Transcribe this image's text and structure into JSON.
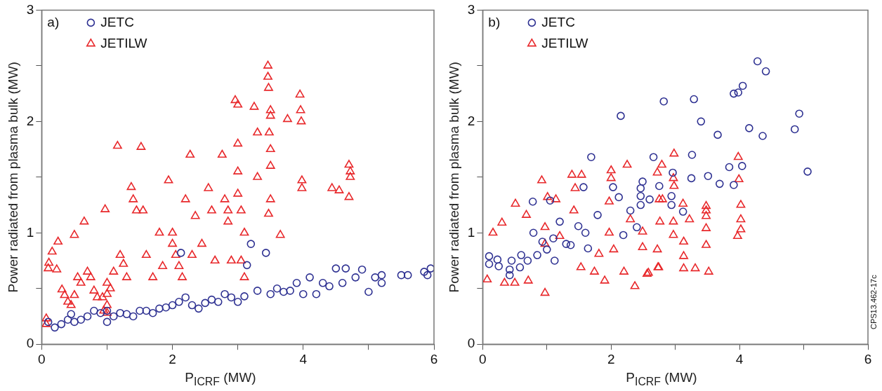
{
  "chart_data": [
    {
      "type": "scatter",
      "xlabel": "P$_{ICRF}$ (MW)",
      "ylabel": "Power radiated from plasma bulk (MW)",
      "annotations": [
        "a)"
      ],
      "xlim": [
        0,
        6
      ],
      "ylim": [
        0,
        3
      ],
      "xticks": [
        0,
        {
          "value": 1,
          "label": null
        },
        2,
        {
          "value": 3,
          "label": null
        },
        4,
        {
          "value": 5,
          "label": null
        },
        6
      ],
      "yticks": [
        0,
        {
          "value": 0.5,
          "label": null
        },
        1,
        {
          "value": 1.5,
          "label": null
        },
        2,
        {
          "value": 2.5,
          "label": null
        },
        3
      ],
      "grid": false,
      "legend": "top left",
      "series": [
        {
          "name": "JETC",
          "color": "#2e3192",
          "marker": "circle",
          "x": [
            0.1,
            0.2,
            0.3,
            0.4,
            0.45,
            0.5,
            0.6,
            0.7,
            0.8,
            0.9,
            1.0,
            1.0,
            1.1,
            1.2,
            1.3,
            1.4,
            1.5,
            1.6,
            1.7,
            1.8,
            1.9,
            2.0,
            2.1,
            2.2,
            2.13,
            2.3,
            2.4,
            2.5,
            2.6,
            2.7,
            2.8,
            2.9,
            3.0,
            3.1,
            3.3,
            3.14,
            3.2,
            3.5,
            3.43,
            3.6,
            3.7,
            3.8,
            3.9,
            4.0,
            4.1,
            4.2,
            4.3,
            4.4,
            4.5,
            4.6,
            4.65,
            4.8,
            4.9,
            5.0,
            5.1,
            5.2,
            5.2,
            5.5,
            5.6,
            5.9,
            5.95,
            5.85
          ],
          "values": [
            0.2,
            0.15,
            0.18,
            0.22,
            0.27,
            0.2,
            0.22,
            0.25,
            0.3,
            0.28,
            0.2,
            0.3,
            0.25,
            0.28,
            0.27,
            0.25,
            0.3,
            0.3,
            0.28,
            0.32,
            0.33,
            0.35,
            0.38,
            0.42,
            0.82,
            0.35,
            0.32,
            0.37,
            0.4,
            0.38,
            0.45,
            0.42,
            0.38,
            0.43,
            0.48,
            0.71,
            0.9,
            0.45,
            0.82,
            0.5,
            0.47,
            0.48,
            0.55,
            0.45,
            0.6,
            0.45,
            0.55,
            0.52,
            0.68,
            0.55,
            0.68,
            0.6,
            0.67,
            0.47,
            0.6,
            0.55,
            0.62,
            0.62,
            0.62,
            0.62,
            0.68,
            0.65
          ]
        },
        {
          "name": "JETILW",
          "color": "#e8282b",
          "marker": "triangle",
          "x": [
            0.07,
            0.07,
            0.11,
            0.1,
            0.16,
            0.23,
            0.25,
            0.31,
            0.35,
            0.4,
            0.45,
            0.5,
            0.5,
            0.55,
            0.6,
            0.65,
            0.7,
            0.75,
            0.8,
            0.85,
            0.93,
            0.95,
            0.97,
            1.0,
            1.0,
            1.0,
            1.0,
            1.05,
            1.1,
            1.16,
            1.2,
            1.25,
            1.3,
            1.37,
            1.4,
            1.45,
            1.52,
            1.55,
            1.6,
            1.7,
            1.8,
            1.85,
            1.94,
            2.0,
            2.0,
            2.05,
            2.1,
            2.15,
            2.2,
            2.27,
            2.3,
            2.35,
            2.45,
            2.55,
            2.6,
            2.65,
            2.76,
            2.8,
            2.85,
            2.85,
            2.9,
            2.96,
            3.0,
            3.0,
            3.0,
            3.0,
            3.05,
            3.1,
            3.05,
            3.1,
            3.25,
            3.3,
            3.3,
            3.46,
            3.46,
            3.47,
            3.5,
            3.5,
            3.48,
            3.5,
            3.5,
            3.47,
            3.5,
            3.65,
            3.76,
            3.95,
            3.96,
            3.97,
            3.98,
            3.98,
            4.44,
            4.55,
            4.7,
            4.72,
            4.72,
            4.7
          ],
          "values": [
            0.23,
            0.18,
            0.73,
            0.68,
            0.83,
            0.67,
            0.92,
            0.49,
            0.44,
            0.38,
            0.35,
            0.44,
            0.98,
            0.6,
            0.55,
            1.1,
            0.65,
            0.6,
            0.48,
            0.42,
            0.42,
            0.3,
            1.21,
            0.55,
            0.45,
            0.35,
            0.28,
            0.5,
            0.65,
            1.78,
            0.8,
            0.72,
            0.6,
            1.41,
            1.3,
            1.2,
            1.77,
            1.2,
            0.8,
            0.6,
            1.0,
            0.7,
            1.47,
            1.0,
            0.9,
            0.8,
            0.7,
            0.6,
            1.3,
            1.7,
            0.8,
            1.15,
            0.9,
            1.4,
            1.2,
            0.75,
            1.7,
            1.3,
            1.2,
            1.1,
            0.75,
            2.19,
            2.15,
            1.8,
            1.55,
            1.35,
            1.2,
            1.0,
            0.75,
            0.6,
            2.13,
            1.9,
            1.5,
            2.5,
            2.4,
            2.3,
            2.1,
            2.05,
            1.9,
            1.75,
            1.6,
            1.17,
            1.3,
            0.98,
            2.02,
            2.24,
            2.1,
            2.0,
            1.47,
            1.4,
            1.4,
            1.38,
            1.61,
            1.55,
            1.5,
            1.32
          ]
        }
      ]
    },
    {
      "type": "scatter",
      "xlabel": "P$_{ICRF}$ (MW)",
      "ylabel": "Power radiated from plasma bulk (MW)",
      "annotations": [
        "b)",
        "CPS13.462-17c"
      ],
      "xlim": [
        0,
        6
      ],
      "ylim": [
        0,
        3
      ],
      "xticks": [
        0,
        {
          "value": 1,
          "label": null
        },
        2,
        {
          "value": 3,
          "label": null
        },
        4,
        {
          "value": 5,
          "label": null
        },
        6
      ],
      "yticks": [
        0,
        {
          "value": 0.5,
          "label": null
        },
        1,
        {
          "value": 1.5,
          "label": null
        },
        2,
        {
          "value": 2.5,
          "label": null
        },
        3
      ],
      "grid": false,
      "legend": "top left",
      "series": [
        {
          "name": "JETC",
          "color": "#2e3192",
          "marker": "circle",
          "x": [
            0.1,
            0.1,
            0.23,
            0.25,
            0.42,
            0.42,
            0.45,
            0.58,
            0.6,
            0.7,
            0.78,
            0.79,
            0.85,
            0.93,
            1.0,
            1.05,
            1.1,
            1.12,
            1.2,
            1.3,
            1.37,
            1.49,
            1.57,
            1.6,
            1.64,
            1.69,
            1.79,
            2.03,
            2.12,
            2.15,
            2.19,
            2.3,
            2.4,
            2.46,
            2.46,
            2.46,
            2.49,
            2.6,
            2.66,
            2.75,
            2.82,
            2.94,
            2.94,
            2.96,
            3.12,
            3.25,
            3.26,
            3.29,
            3.4,
            3.51,
            3.66,
            3.69,
            3.84,
            3.91,
            3.91,
            3.98,
            4.04,
            4.05,
            4.15,
            4.28,
            4.36,
            4.41,
            4.86,
            4.93,
            5.06
          ],
          "values": [
            0.79,
            0.72,
            0.76,
            0.7,
            0.67,
            0.62,
            0.75,
            0.69,
            0.8,
            0.75,
            1.28,
            1.0,
            0.8,
            0.92,
            0.85,
            1.29,
            0.95,
            0.75,
            1.1,
            0.9,
            0.89,
            1.06,
            1.41,
            1.0,
            0.86,
            1.68,
            1.16,
            1.41,
            1.32,
            2.05,
            0.98,
            1.2,
            1.05,
            1.4,
            1.33,
            1.25,
            1.46,
            1.3,
            1.68,
            1.42,
            2.18,
            1.33,
            1.25,
            1.54,
            1.19,
            1.49,
            1.7,
            2.2,
            2.0,
            1.51,
            1.88,
            1.44,
            1.59,
            1.43,
            2.25,
            2.26,
            1.6,
            2.32,
            1.94,
            2.54,
            1.87,
            2.45,
            1.93,
            2.07,
            1.55
          ]
        },
        {
          "name": "JETILW",
          "color": "#e8282b",
          "marker": "triangle",
          "x": [
            0.07,
            0.16,
            0.3,
            0.34,
            0.5,
            0.51,
            0.68,
            0.71,
            0.92,
            0.97,
            0.97,
            0.97,
            1.01,
            1.14,
            1.2,
            1.39,
            1.44,
            1.42,
            1.53,
            1.54,
            1.74,
            1.81,
            1.9,
            2.0,
            2.0,
            1.97,
            1.97,
            2.04,
            2.2,
            2.25,
            2.3,
            2.37,
            2.49,
            2.49,
            2.56,
            2.58,
            2.72,
            2.72,
            2.73,
            2.74,
            2.75,
            2.76,
            2.79,
            2.8,
            2.97,
            2.97,
            2.97,
            2.98,
            2.98,
            3.12,
            3.13,
            3.13,
            3.13,
            3.22,
            3.31,
            3.48,
            3.48,
            3.48,
            3.48,
            3.48,
            3.52,
            3.97,
            3.98,
            3.99,
            4.02,
            4.02,
            4.02
          ],
          "values": [
            0.58,
            1.0,
            1.09,
            0.55,
            0.55,
            1.26,
            1.16,
            0.57,
            1.47,
            0.46,
            0.9,
            1.05,
            1.32,
            1.3,
            0.97,
            1.52,
            1.4,
            1.2,
            0.69,
            1.52,
            0.65,
            0.81,
            0.57,
            1.56,
            1.49,
            1.28,
            1.0,
            0.85,
            0.65,
            1.61,
            1.12,
            0.52,
            1.01,
            0.87,
            0.63,
            0.64,
            1.54,
            0.85,
            0.69,
            0.69,
            1.3,
            1.1,
            1.61,
            1.3,
            1.49,
            0.98,
            1.1,
            1.71,
            1.42,
            1.26,
            0.68,
            0.79,
            0.92,
            1.12,
            0.68,
            1.24,
            1.2,
            1.15,
            1.04,
            0.89,
            0.65,
            0.97,
            1.68,
            1.48,
            1.25,
            1.12,
            1.03
          ]
        }
      ]
    }
  ]
}
